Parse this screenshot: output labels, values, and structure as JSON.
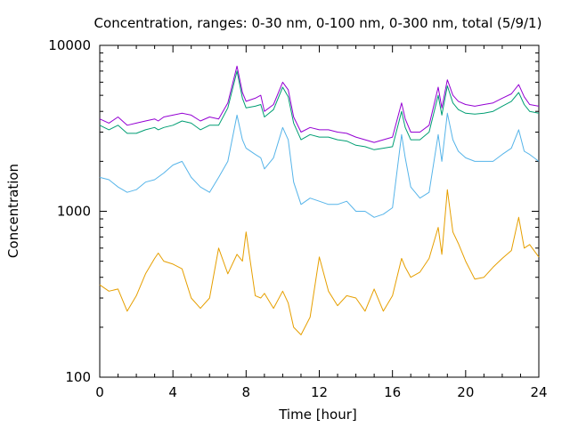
{
  "chart_data": {
    "type": "line",
    "title": "Concentration, ranges: 0-30 nm, 0-100 nm, 0-300 nm, total (5/9/1)",
    "xlabel": "Time [hour]",
    "ylabel": "Concentration",
    "xlim": [
      0,
      24
    ],
    "ylim": [
      100,
      10000
    ],
    "y_scale": "log",
    "grid": false,
    "x_ticks": [
      "0",
      "4",
      "8",
      "12",
      "16",
      "20",
      "24"
    ],
    "y_ticks": [
      "100",
      "1000",
      "10000"
    ],
    "series": [
      {
        "color": "#9400d3",
        "points": [
          [
            0,
            3600
          ],
          [
            0.5,
            3400
          ],
          [
            1,
            3700
          ],
          [
            1.5,
            3300
          ],
          [
            2,
            3400
          ],
          [
            2.5,
            3500
          ],
          [
            3,
            3600
          ],
          [
            3.2,
            3500
          ],
          [
            3.5,
            3700
          ],
          [
            4,
            3800
          ],
          [
            4.5,
            3900
          ],
          [
            5,
            3800
          ],
          [
            5.5,
            3500
          ],
          [
            6,
            3700
          ],
          [
            6.5,
            3600
          ],
          [
            7,
            4500
          ],
          [
            7.5,
            7500
          ],
          [
            7.8,
            5200
          ],
          [
            8,
            4600
          ],
          [
            8.5,
            4800
          ],
          [
            8.8,
            5000
          ],
          [
            9,
            4000
          ],
          [
            9.5,
            4400
          ],
          [
            10,
            6000
          ],
          [
            10.3,
            5400
          ],
          [
            10.6,
            3700
          ],
          [
            11,
            3000
          ],
          [
            11.5,
            3200
          ],
          [
            12,
            3100
          ],
          [
            12.5,
            3100
          ],
          [
            13,
            3000
          ],
          [
            13.5,
            2950
          ],
          [
            14,
            2800
          ],
          [
            14.5,
            2700
          ],
          [
            15,
            2600
          ],
          [
            15.5,
            2700
          ],
          [
            16,
            2800
          ],
          [
            16.5,
            4500
          ],
          [
            16.7,
            3600
          ],
          [
            17,
            3000
          ],
          [
            17.5,
            3000
          ],
          [
            18,
            3300
          ],
          [
            18.5,
            5600
          ],
          [
            18.7,
            4200
          ],
          [
            19,
            6200
          ],
          [
            19.3,
            5000
          ],
          [
            19.6,
            4600
          ],
          [
            20,
            4400
          ],
          [
            20.5,
            4300
          ],
          [
            21,
            4400
          ],
          [
            21.5,
            4500
          ],
          [
            22,
            4800
          ],
          [
            22.5,
            5100
          ],
          [
            22.9,
            5800
          ],
          [
            23.2,
            4900
          ],
          [
            23.5,
            4400
          ],
          [
            24,
            4300
          ]
        ]
      },
      {
        "color": "#009e73",
        "points": [
          [
            0,
            3300
          ],
          [
            0.5,
            3100
          ],
          [
            1,
            3300
          ],
          [
            1.5,
            2950
          ],
          [
            2,
            2950
          ],
          [
            2.5,
            3100
          ],
          [
            3,
            3200
          ],
          [
            3.2,
            3100
          ],
          [
            3.5,
            3200
          ],
          [
            4,
            3300
          ],
          [
            4.5,
            3500
          ],
          [
            5,
            3400
          ],
          [
            5.5,
            3100
          ],
          [
            6,
            3300
          ],
          [
            6.5,
            3300
          ],
          [
            7,
            4200
          ],
          [
            7.5,
            7000
          ],
          [
            7.8,
            4800
          ],
          [
            8,
            4200
          ],
          [
            8.5,
            4300
          ],
          [
            8.8,
            4400
          ],
          [
            9,
            3700
          ],
          [
            9.5,
            4100
          ],
          [
            10,
            5600
          ],
          [
            10.3,
            4900
          ],
          [
            10.6,
            3400
          ],
          [
            11,
            2700
          ],
          [
            11.5,
            2900
          ],
          [
            12,
            2800
          ],
          [
            12.5,
            2800
          ],
          [
            13,
            2700
          ],
          [
            13.5,
            2650
          ],
          [
            14,
            2500
          ],
          [
            14.5,
            2450
          ],
          [
            15,
            2350
          ],
          [
            15.5,
            2400
          ],
          [
            16,
            2450
          ],
          [
            16.5,
            4000
          ],
          [
            16.7,
            3200
          ],
          [
            17,
            2700
          ],
          [
            17.5,
            2700
          ],
          [
            18,
            3000
          ],
          [
            18.5,
            5000
          ],
          [
            18.7,
            3800
          ],
          [
            19,
            5700
          ],
          [
            19.3,
            4500
          ],
          [
            19.6,
            4100
          ],
          [
            20,
            3900
          ],
          [
            20.5,
            3850
          ],
          [
            21,
            3900
          ],
          [
            21.5,
            4000
          ],
          [
            22,
            4300
          ],
          [
            22.5,
            4600
          ],
          [
            22.9,
            5200
          ],
          [
            23.2,
            4400
          ],
          [
            23.5,
            4000
          ],
          [
            24,
            3900
          ]
        ]
      },
      {
        "color": "#56b4e9",
        "points": [
          [
            0,
            1600
          ],
          [
            0.5,
            1550
          ],
          [
            1,
            1400
          ],
          [
            1.5,
            1300
          ],
          [
            2,
            1350
          ],
          [
            2.5,
            1500
          ],
          [
            3,
            1550
          ],
          [
            3.5,
            1700
          ],
          [
            4,
            1900
          ],
          [
            4.5,
            2000
          ],
          [
            5,
            1600
          ],
          [
            5.5,
            1400
          ],
          [
            6,
            1300
          ],
          [
            6.5,
            1600
          ],
          [
            7,
            2000
          ],
          [
            7.5,
            3800
          ],
          [
            7.8,
            2700
          ],
          [
            8,
            2400
          ],
          [
            8.5,
            2200
          ],
          [
            8.8,
            2100
          ],
          [
            9,
            1800
          ],
          [
            9.5,
            2100
          ],
          [
            10,
            3200
          ],
          [
            10.3,
            2700
          ],
          [
            10.6,
            1500
          ],
          [
            11,
            1100
          ],
          [
            11.5,
            1200
          ],
          [
            12,
            1150
          ],
          [
            12.5,
            1100
          ],
          [
            13,
            1100
          ],
          [
            13.5,
            1150
          ],
          [
            14,
            1000
          ],
          [
            14.5,
            1000
          ],
          [
            15,
            920
          ],
          [
            15.5,
            960
          ],
          [
            16,
            1050
          ],
          [
            16.5,
            2900
          ],
          [
            16.7,
            2100
          ],
          [
            17,
            1400
          ],
          [
            17.5,
            1200
          ],
          [
            18,
            1300
          ],
          [
            18.5,
            2900
          ],
          [
            18.7,
            2000
          ],
          [
            19,
            3900
          ],
          [
            19.3,
            2700
          ],
          [
            19.6,
            2300
          ],
          [
            20,
            2100
          ],
          [
            20.5,
            2000
          ],
          [
            21,
            2000
          ],
          [
            21.5,
            2000
          ],
          [
            22,
            2200
          ],
          [
            22.5,
            2400
          ],
          [
            22.9,
            3100
          ],
          [
            23.2,
            2300
          ],
          [
            23.5,
            2200
          ],
          [
            24,
            2000
          ]
        ]
      },
      {
        "color": "#e69f00",
        "points": [
          [
            0,
            360
          ],
          [
            0.5,
            330
          ],
          [
            1,
            340
          ],
          [
            1.5,
            250
          ],
          [
            2,
            310
          ],
          [
            2.5,
            420
          ],
          [
            3,
            520
          ],
          [
            3.2,
            560
          ],
          [
            3.5,
            500
          ],
          [
            4,
            480
          ],
          [
            4.5,
            450
          ],
          [
            5,
            300
          ],
          [
            5.5,
            260
          ],
          [
            6,
            300
          ],
          [
            6.5,
            600
          ],
          [
            7,
            420
          ],
          [
            7.5,
            550
          ],
          [
            7.8,
            500
          ],
          [
            8,
            750
          ],
          [
            8.5,
            310
          ],
          [
            8.8,
            300
          ],
          [
            9,
            320
          ],
          [
            9.5,
            260
          ],
          [
            10,
            330
          ],
          [
            10.3,
            280
          ],
          [
            10.6,
            200
          ],
          [
            11,
            180
          ],
          [
            11.5,
            230
          ],
          [
            12,
            530
          ],
          [
            12.5,
            330
          ],
          [
            13,
            270
          ],
          [
            13.5,
            310
          ],
          [
            14,
            300
          ],
          [
            14.5,
            250
          ],
          [
            15,
            340
          ],
          [
            15.5,
            250
          ],
          [
            16,
            310
          ],
          [
            16.5,
            520
          ],
          [
            16.7,
            460
          ],
          [
            17,
            400
          ],
          [
            17.5,
            430
          ],
          [
            18,
            520
          ],
          [
            18.5,
            800
          ],
          [
            18.7,
            550
          ],
          [
            19,
            1350
          ],
          [
            19.3,
            750
          ],
          [
            19.6,
            640
          ],
          [
            20,
            500
          ],
          [
            20.5,
            390
          ],
          [
            21,
            400
          ],
          [
            21.5,
            460
          ],
          [
            22,
            520
          ],
          [
            22.5,
            580
          ],
          [
            22.9,
            920
          ],
          [
            23.2,
            600
          ],
          [
            23.5,
            630
          ],
          [
            24,
            530
          ]
        ]
      }
    ]
  }
}
